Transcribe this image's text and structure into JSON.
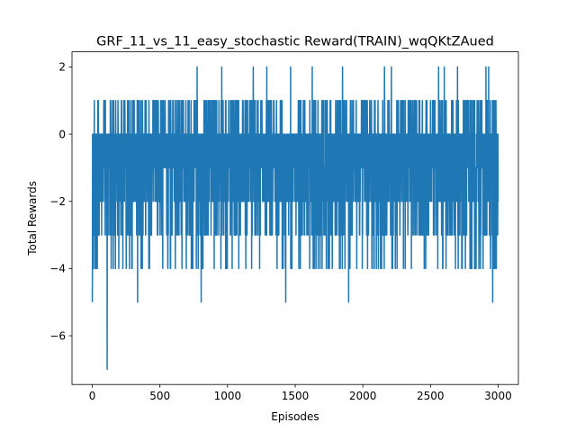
{
  "chart_data": {
    "type": "line",
    "title": "GRF_11_vs_11_easy_stochastic Reward(TRAIN)_wqQKtZAued",
    "xlabel": "Episodes",
    "ylabel": "Total Rewards",
    "xlim": [
      -150,
      3150
    ],
    "ylim": [
      -7.45,
      2.45
    ],
    "xticks": [
      0,
      500,
      1000,
      1500,
      2000,
      2500,
      3000
    ],
    "yticks": [
      -6,
      -4,
      -2,
      0,
      2
    ],
    "xtick_labels": [
      "0",
      "500",
      "1000",
      "1500",
      "2000",
      "2500",
      "3000"
    ],
    "ytick_labels": [
      "−6",
      "−4",
      "−2",
      "0",
      "2"
    ],
    "grid": false,
    "series": [
      {
        "color": "#1f77b4",
        "x_start": 0,
        "x_step": 1,
        "points": 3001,
        "value_range": [
          -7,
          2
        ],
        "most_common_range": [
          -3,
          0
        ],
        "notable_points": [
          {
            "x": 0,
            "y": -5
          },
          {
            "x": 110,
            "y": -7
          },
          {
            "x": 335,
            "y": -5
          },
          {
            "x": 775,
            "y": 2
          },
          {
            "x": 805,
            "y": -5
          },
          {
            "x": 1190,
            "y": 2
          },
          {
            "x": 1290,
            "y": 2
          },
          {
            "x": 1430,
            "y": -5
          },
          {
            "x": 1850,
            "y": 2
          },
          {
            "x": 1895,
            "y": -5
          },
          {
            "x": 2160,
            "y": 2
          },
          {
            "x": 2560,
            "y": 2
          },
          {
            "x": 2700,
            "y": 2
          },
          {
            "x": 2910,
            "y": 2
          },
          {
            "x": 2930,
            "y": 2
          },
          {
            "x": 2960,
            "y": -5
          }
        ]
      }
    ]
  }
}
